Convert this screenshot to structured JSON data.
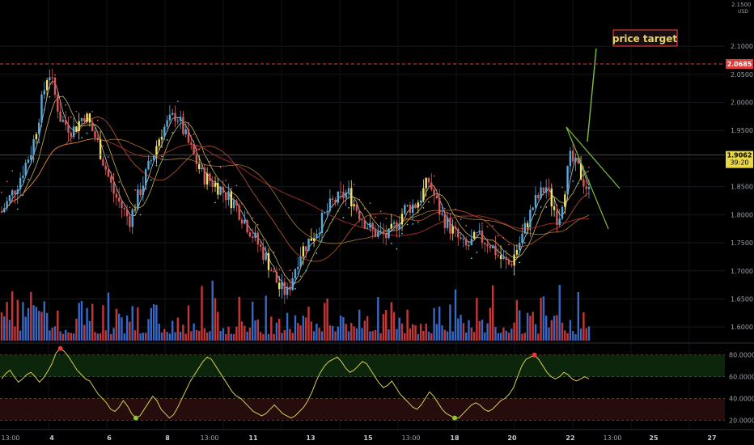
{
  "chart_data": {
    "type": "candlestick",
    "currency_label": "USD",
    "price_axis_ticks": [
      "2.1000",
      "2.0500",
      "2.0000",
      "1.9500",
      "1.9000",
      "1.8500",
      "1.8000",
      "1.7500",
      "1.7000",
      "1.6500",
      "1.6000"
    ],
    "top_tick_label": "2.1500",
    "price_range": [
      1.57,
      2.165
    ],
    "target_price_label": "2.0685",
    "target_price": 2.0685,
    "current_price_label": "1.9062",
    "current_price": 1.9062,
    "countdown_label": "39:20",
    "annotation": "price target",
    "oscillator": {
      "ticks": [
        "80.0000",
        "60.0000",
        "40.0000",
        "20.0000"
      ],
      "range": [
        12,
        88
      ],
      "upper_levels": [
        80,
        60
      ],
      "lower_levels": [
        40,
        20
      ],
      "values": [
        58,
        63,
        66,
        60,
        55,
        58,
        62,
        64,
        60,
        55,
        59,
        65,
        72,
        82,
        86,
        83,
        78,
        72,
        66,
        62,
        58,
        56,
        50,
        44,
        40,
        36,
        30,
        28,
        32,
        38,
        33,
        26,
        22,
        24,
        30,
        36,
        42,
        38,
        30,
        26,
        22,
        25,
        32,
        40,
        48,
        56,
        62,
        68,
        74,
        78,
        76,
        70,
        64,
        58,
        52,
        46,
        42,
        40,
        36,
        32,
        28,
        26,
        24,
        26,
        30,
        34,
        30,
        26,
        24,
        22,
        24,
        28,
        32,
        38,
        46,
        56,
        64,
        70,
        74,
        76,
        78,
        74,
        68,
        64,
        66,
        70,
        74,
        72,
        66,
        60,
        54,
        50,
        52,
        56,
        50,
        44,
        40,
        36,
        32,
        30,
        34,
        40,
        46,
        42,
        36,
        30,
        26,
        24,
        22,
        22,
        26,
        30,
        34,
        36,
        34,
        30,
        28,
        30,
        34,
        38,
        40,
        44,
        50,
        60,
        70,
        76,
        78,
        80,
        76,
        70,
        64,
        60,
        58,
        60,
        64,
        62,
        58,
        56,
        58,
        60,
        58
      ]
    },
    "date_labels": [
      "13:00",
      "4",
      "6",
      "8",
      "13:00",
      "11",
      "13",
      "15",
      "13:00",
      "18",
      "20",
      "22",
      "13:00",
      "25",
      "27"
    ]
  }
}
